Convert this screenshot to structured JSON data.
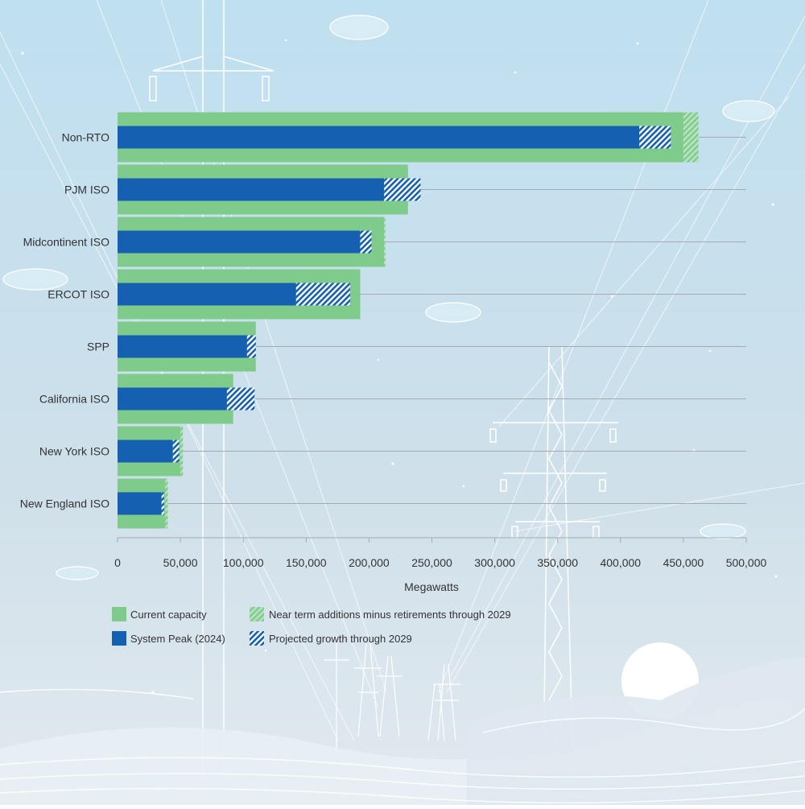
{
  "chart_data": {
    "type": "bar",
    "orientation": "horizontal",
    "categories": [
      "Non-RTO",
      "PJM ISO",
      "Midcontinent ISO",
      "ERCOT ISO",
      "SPP",
      "California ISO",
      "New York ISO",
      "New England ISO"
    ],
    "series": [
      {
        "name": "Current capacity",
        "values": [
          450000,
          231000,
          212000,
          193000,
          110000,
          92000,
          50000,
          38000
        ]
      },
      {
        "name": "Near term additions minus retirements through 2029",
        "values": [
          12000,
          0,
          1000,
          0,
          0,
          0,
          2000,
          2000
        ]
      },
      {
        "name": "System Peak (2024)",
        "values": [
          415000,
          212000,
          193000,
          142000,
          103000,
          87000,
          44000,
          35000
        ]
      },
      {
        "name": "Projected growth through 2029",
        "values": [
          25000,
          29000,
          9000,
          43000,
          7000,
          22000,
          5000,
          2000
        ]
      }
    ],
    "xlabel": "Megawatts",
    "ylabel": "",
    "xlim": [
      0,
      500000
    ],
    "ticks": [
      "0",
      "50,000",
      "100,000",
      "150,000",
      "200,000",
      "250,000",
      "300,000",
      "350,000",
      "400,000",
      "450,000",
      "500,000"
    ],
    "grid": true,
    "legend_position": "bottom-left"
  },
  "colors": {
    "capacity": "#7ecb8c",
    "peak": "#1560b0",
    "grid": "#a4aab0",
    "text": "#333333",
    "sky_top": "#bfe0f0",
    "sky_bottom": "#dbe6ee"
  },
  "legend": {
    "capacity_label": "Current capacity",
    "additions_label": "Near term additions minus retirements through 2029",
    "peak_label": "System Peak (2024)",
    "growth_label": "Projected growth through 2029"
  }
}
